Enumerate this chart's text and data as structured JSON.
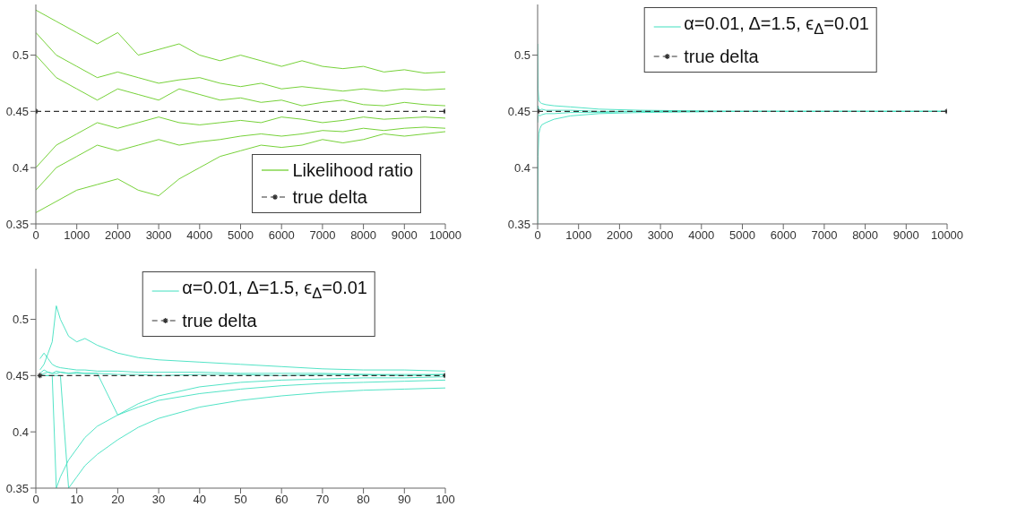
{
  "chart_data": [
    {
      "type": "line",
      "xlim": [
        0,
        10000
      ],
      "xticks": [
        0,
        1000,
        2000,
        3000,
        4000,
        5000,
        6000,
        7000,
        8000,
        9000,
        10000
      ],
      "ylim": [
        0.35,
        0.545
      ],
      "yticks": [
        0.35,
        0.4,
        0.45,
        0.5
      ],
      "legend": "bottom right",
      "x": [
        0,
        500,
        1000,
        1500,
        2000,
        2500,
        3000,
        3500,
        4000,
        4500,
        5000,
        5500,
        6000,
        6500,
        7000,
        7500,
        8000,
        8500,
        9000,
        9500,
        10000
      ],
      "series": [
        {
          "name": "Likelihood ratio",
          "color": "#66cc22",
          "values": [
            0.54,
            0.53,
            0.52,
            0.51,
            0.52,
            0.5,
            0.505,
            0.51,
            0.5,
            0.495,
            0.5,
            0.495,
            0.49,
            0.495,
            0.49,
            0.488,
            0.49,
            0.485,
            0.487,
            0.484,
            0.485
          ]
        },
        {
          "color": "#66cc22",
          "values": [
            0.36,
            0.37,
            0.38,
            0.385,
            0.39,
            0.38,
            0.375,
            0.39,
            0.4,
            0.41,
            0.415,
            0.42,
            0.418,
            0.42,
            0.425,
            0.422,
            0.425,
            0.43,
            0.428,
            0.43,
            0.432
          ]
        },
        {
          "color": "#66cc22",
          "values": [
            0.5,
            0.48,
            0.47,
            0.46,
            0.47,
            0.465,
            0.46,
            0.47,
            0.465,
            0.46,
            0.462,
            0.458,
            0.46,
            0.455,
            0.458,
            0.46,
            0.456,
            0.455,
            0.458,
            0.456,
            0.455
          ]
        },
        {
          "color": "#66cc22",
          "values": [
            0.4,
            0.42,
            0.43,
            0.44,
            0.435,
            0.44,
            0.445,
            0.44,
            0.438,
            0.44,
            0.442,
            0.44,
            0.445,
            0.443,
            0.44,
            0.442,
            0.445,
            0.443,
            0.444,
            0.445,
            0.444
          ]
        },
        {
          "color": "#66cc22",
          "values": [
            0.52,
            0.5,
            0.49,
            0.48,
            0.485,
            0.48,
            0.475,
            0.478,
            0.48,
            0.475,
            0.472,
            0.475,
            0.47,
            0.472,
            0.47,
            0.468,
            0.47,
            0.468,
            0.47,
            0.469,
            0.47
          ]
        },
        {
          "color": "#66cc22",
          "values": [
            0.38,
            0.4,
            0.41,
            0.42,
            0.415,
            0.42,
            0.425,
            0.42,
            0.423,
            0.425,
            0.428,
            0.43,
            0.428,
            0.43,
            0.433,
            0.432,
            0.435,
            0.433,
            0.435,
            0.436,
            0.435
          ]
        },
        {
          "name": "true delta",
          "color": "#333333",
          "x": [
            0,
            10000
          ],
          "values": [
            0.45,
            0.45
          ],
          "line_style": "dashed",
          "marker": "cross"
        }
      ]
    },
    {
      "type": "line",
      "xlim": [
        0,
        10000
      ],
      "xticks": [
        0,
        1000,
        2000,
        3000,
        4000,
        5000,
        6000,
        7000,
        8000,
        9000,
        10000
      ],
      "ylim": [
        0.35,
        0.545
      ],
      "yticks": [
        0.35,
        0.4,
        0.45,
        0.5
      ],
      "legend": "top",
      "x": [
        0,
        10,
        30,
        60,
        100,
        200,
        400,
        800,
        1500,
        2500,
        5000,
        10000
      ],
      "series": [
        {
          "name": "α=0.01, Δ=1.5, ϵ$_{Δ}$=0.01",
          "color": "#40e0c0",
          "values": [
            0.51,
            0.47,
            0.46,
            0.458,
            0.457,
            0.456,
            0.455,
            0.454,
            0.452,
            0.451,
            0.45,
            0.45
          ]
        },
        {
          "color": "#40e0c0",
          "values": [
            0.35,
            0.41,
            0.43,
            0.435,
            0.438,
            0.44,
            0.443,
            0.446,
            0.448,
            0.449,
            0.45,
            0.45
          ]
        },
        {
          "color": "#40e0c0",
          "values": [
            0.45,
            0.455,
            0.452,
            0.451,
            0.452,
            0.451,
            0.451,
            0.451,
            0.45,
            0.45,
            0.45,
            0.45
          ]
        },
        {
          "color": "#40e0c0",
          "values": [
            0.44,
            0.445,
            0.447,
            0.446,
            0.447,
            0.448,
            0.448,
            0.449,
            0.449,
            0.45,
            0.45,
            0.45
          ]
        },
        {
          "name": "true delta",
          "color": "#333333",
          "x": [
            0,
            10000
          ],
          "values": [
            0.45,
            0.45
          ],
          "line_style": "dashed",
          "marker": "cross"
        }
      ]
    },
    {
      "type": "line",
      "xlim": [
        0,
        100
      ],
      "xticks": [
        0,
        10,
        20,
        30,
        40,
        50,
        60,
        70,
        80,
        90,
        100
      ],
      "ylim": [
        0.35,
        0.545
      ],
      "yticks": [
        0.35,
        0.4,
        0.45,
        0.5
      ],
      "legend": "top",
      "x": [
        1,
        2,
        3,
        4,
        5,
        6,
        8,
        10,
        12,
        15,
        20,
        25,
        30,
        40,
        50,
        60,
        70,
        80,
        90,
        100
      ],
      "series": [
        {
          "name": "α=0.01, Δ=1.5, ϵ$_{Δ}$=0.01",
          "color": "#40e0c0",
          "values": [
            0.455,
            0.46,
            0.47,
            0.48,
            0.512,
            0.5,
            0.485,
            0.48,
            0.483,
            0.477,
            0.47,
            0.466,
            0.464,
            0.462,
            0.46,
            0.458,
            0.456,
            0.455,
            0.455,
            0.454
          ]
        },
        {
          "color": "#40e0c0",
          "values": [
            0.45,
            0.45,
            0.45,
            0.45,
            0.35,
            0.36,
            0.375,
            0.385,
            0.395,
            0.405,
            0.415,
            0.422,
            0.428,
            0.434,
            0.438,
            0.441,
            0.443,
            0.444,
            0.445,
            0.446
          ]
        },
        {
          "color": "#40e0c0",
          "values": [
            0.45,
            0.45,
            0.45,
            0.45,
            0.45,
            0.45,
            0.35,
            0.36,
            0.37,
            0.38,
            0.393,
            0.404,
            0.412,
            0.422,
            0.428,
            0.432,
            0.435,
            0.437,
            0.438,
            0.439
          ]
        },
        {
          "color": "#40e0c0",
          "values": [
            0.452,
            0.455,
            0.453,
            0.452,
            0.454,
            0.453,
            0.452,
            0.453,
            0.452,
            0.452,
            0.451,
            0.451,
            0.45,
            0.451,
            0.451,
            0.45,
            0.451,
            0.451,
            0.45,
            0.451
          ]
        },
        {
          "color": "#40e0c0",
          "values": [
            0.465,
            0.47,
            0.465,
            0.46,
            0.458,
            0.457,
            0.456,
            0.455,
            0.455,
            0.454,
            0.454,
            0.453,
            0.453,
            0.453,
            0.452,
            0.452,
            0.452,
            0.451,
            0.451,
            0.451
          ]
        },
        {
          "color": "#40e0c0",
          "values": [
            0.45,
            0.452,
            0.453,
            0.452,
            0.452,
            0.453,
            0.452,
            0.452,
            0.452,
            0.452,
            0.415,
            0.425,
            0.432,
            0.44,
            0.444,
            0.446,
            0.447,
            0.448,
            0.448,
            0.449
          ]
        },
        {
          "name": "true delta",
          "color": "#333333",
          "x": [
            1,
            100
          ],
          "values": [
            0.45,
            0.45
          ],
          "line_style": "dashed",
          "marker": "cross"
        }
      ]
    }
  ]
}
